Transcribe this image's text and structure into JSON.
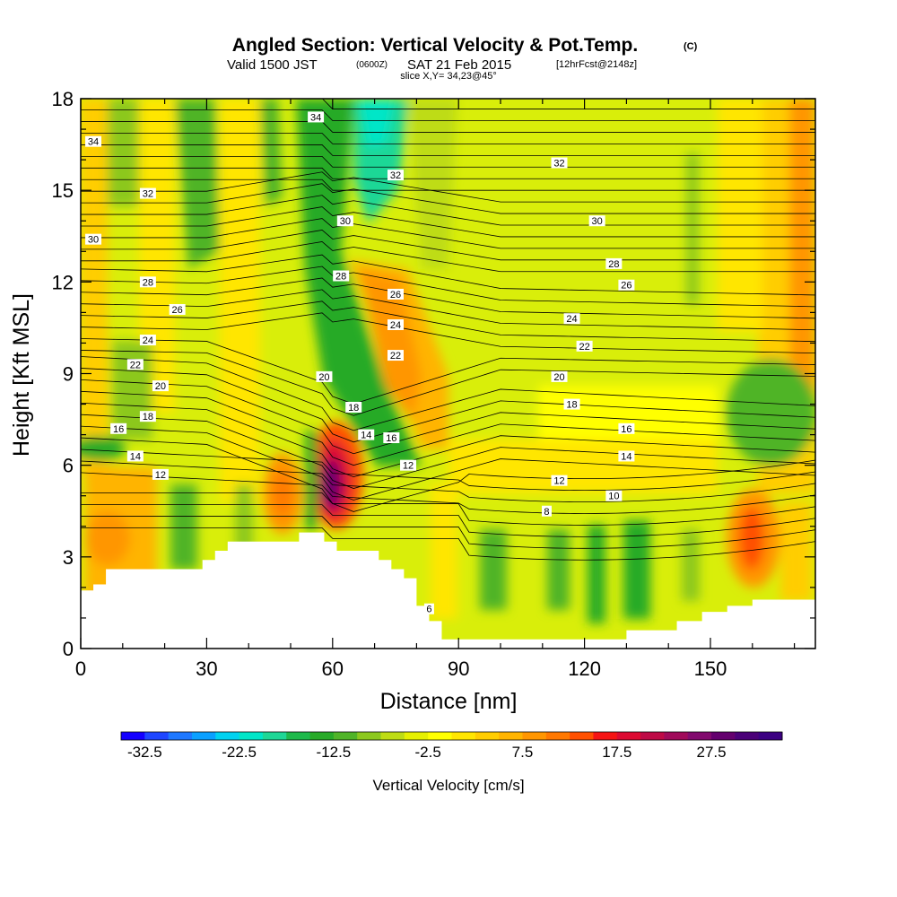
{
  "header": {
    "title": "Angled Section: Vertical Velocity & Pot.Temp.",
    "copyright": "(C)",
    "valid_prefix": "Valid 1500 JST",
    "valid_utc": "(0600Z)",
    "valid_date": "SAT 21 Feb 2015",
    "forecast": "[12hrFcst@2148z]",
    "slice": "slice X,Y= 34,23@45°"
  },
  "chart_data": {
    "type": "heatmap",
    "xlabel": "Distance [nm]",
    "ylabel": "Height [Kft MSL]",
    "xlim": [
      0,
      175
    ],
    "ylim": [
      0,
      18
    ],
    "x_ticks": [
      0,
      30,
      60,
      90,
      120,
      150
    ],
    "y_ticks": [
      0,
      3,
      6,
      9,
      12,
      15,
      18
    ],
    "colorbar": {
      "label": "Vertical Velocity [cm/s]",
      "tick_labels": [
        "-32.5",
        "-22.5",
        "-12.5",
        "-2.5",
        "7.5",
        "17.5",
        "27.5"
      ],
      "min": -35,
      "max": 35,
      "step": 2.5,
      "colors": [
        "#1400ff",
        "#1e46ff",
        "#1e78ff",
        "#0aa0ff",
        "#00d2f0",
        "#00e6c8",
        "#1ed796",
        "#1eb94b",
        "#28aa28",
        "#50b428",
        "#8cc81e",
        "#bedc14",
        "#e6f000",
        "#ffff00",
        "#ffe600",
        "#ffcd00",
        "#ffb400",
        "#ff9600",
        "#ff7800",
        "#ff5000",
        "#f51414",
        "#dc0a32",
        "#be0a46",
        "#a00a5a",
        "#820a6e",
        "#64006e",
        "#4b0078",
        "#3c0082"
      ]
    },
    "theta_contour_labels": [
      {
        "label": "34",
        "x": 3,
        "y": 16.6
      },
      {
        "label": "34",
        "x": 56,
        "y": 17.4
      },
      {
        "label": "32",
        "x": 16,
        "y": 14.9
      },
      {
        "label": "32",
        "x": 75,
        "y": 15.5
      },
      {
        "label": "32",
        "x": 114,
        "y": 15.9
      },
      {
        "label": "30",
        "x": 3,
        "y": 13.4
      },
      {
        "label": "30",
        "x": 63,
        "y": 14.0
      },
      {
        "label": "30",
        "x": 123,
        "y": 14.0
      },
      {
        "label": "28",
        "x": 16,
        "y": 12.0
      },
      {
        "label": "28",
        "x": 62,
        "y": 12.2
      },
      {
        "label": "28",
        "x": 127,
        "y": 12.6
      },
      {
        "label": "26",
        "x": 23,
        "y": 11.1
      },
      {
        "label": "26",
        "x": 75,
        "y": 11.6
      },
      {
        "label": "26",
        "x": 130,
        "y": 11.9
      },
      {
        "label": "24",
        "x": 16,
        "y": 10.1
      },
      {
        "label": "24",
        "x": 75,
        "y": 10.6
      },
      {
        "label": "24",
        "x": 117,
        "y": 10.8
      },
      {
        "label": "22",
        "x": 13,
        "y": 9.3
      },
      {
        "label": "22",
        "x": 75,
        "y": 9.6
      },
      {
        "label": "22",
        "x": 120,
        "y": 9.9
      },
      {
        "label": "20",
        "x": 19,
        "y": 8.6
      },
      {
        "label": "20",
        "x": 58,
        "y": 8.9
      },
      {
        "label": "20",
        "x": 114,
        "y": 8.9
      },
      {
        "label": "18",
        "x": 16,
        "y": 7.6
      },
      {
        "label": "18",
        "x": 65,
        "y": 7.9
      },
      {
        "label": "18",
        "x": 117,
        "y": 8.0
      },
      {
        "label": "16",
        "x": 9,
        "y": 7.2
      },
      {
        "label": "16",
        "x": 74,
        "y": 6.9
      },
      {
        "label": "16",
        "x": 130,
        "y": 7.2
      },
      {
        "label": "14",
        "x": 13,
        "y": 6.3
      },
      {
        "label": "14",
        "x": 68,
        "y": 7.0
      },
      {
        "label": "14",
        "x": 130,
        "y": 6.3
      },
      {
        "label": "12",
        "x": 19,
        "y": 5.7
      },
      {
        "label": "12",
        "x": 78,
        "y": 6.0
      },
      {
        "label": "12",
        "x": 114,
        "y": 5.5
      },
      {
        "label": "10",
        "x": 127,
        "y": 5.0
      },
      {
        "label": "8",
        "x": 111,
        "y": 4.5
      },
      {
        "label": "6",
        "x": 83,
        "y": 1.3
      }
    ],
    "terrain_profile": [
      [
        0,
        1.9
      ],
      [
        3,
        1.9
      ],
      [
        3,
        2.1
      ],
      [
        6,
        2.1
      ],
      [
        6,
        2.6
      ],
      [
        20,
        2.6
      ],
      [
        20,
        2.6
      ],
      [
        29,
        2.6
      ],
      [
        29,
        2.9
      ],
      [
        32,
        2.9
      ],
      [
        32,
        3.2
      ],
      [
        35,
        3.2
      ],
      [
        35,
        3.5
      ],
      [
        46,
        3.5
      ],
      [
        46,
        3.5
      ],
      [
        52,
        3.5
      ],
      [
        52,
        3.8
      ],
      [
        58,
        3.8
      ],
      [
        58,
        3.5
      ],
      [
        61,
        3.5
      ],
      [
        61,
        3.2
      ],
      [
        71,
        3.2
      ],
      [
        71,
        2.9
      ],
      [
        74,
        2.9
      ],
      [
        74,
        2.6
      ],
      [
        77,
        2.6
      ],
      [
        77,
        2.3
      ],
      [
        80,
        2.3
      ],
      [
        80,
        1.4
      ],
      [
        83,
        1.4
      ],
      [
        83,
        0.9
      ],
      [
        86,
        0.9
      ],
      [
        86,
        0.3
      ],
      [
        130,
        0.3
      ],
      [
        130,
        0.6
      ],
      [
        142,
        0.6
      ],
      [
        142,
        0.9
      ],
      [
        148,
        0.9
      ],
      [
        148,
        1.2
      ],
      [
        154,
        1.2
      ],
      [
        154,
        1.4
      ],
      [
        160,
        1.4
      ],
      [
        160,
        1.6
      ],
      [
        175,
        1.6
      ]
    ]
  }
}
